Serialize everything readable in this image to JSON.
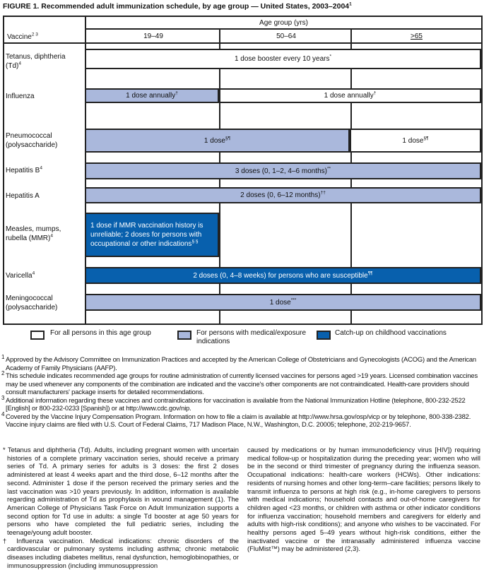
{
  "title": {
    "text": "FIGURE 1. Recommended adult immunization schedule, by age group — United States, 2003–2004",
    "sup": "1"
  },
  "header": {
    "vaccine": "Vaccine",
    "vaccine_sup": "2 3",
    "age_group": "Age group (yrs)",
    "ages": [
      "19–49",
      "50–64",
      ">65"
    ]
  },
  "rows": [
    {
      "vaccine": "Tetanus, diphtheria (Td)",
      "sup": "4",
      "bars": [
        {
          "text": "1 dose booster every 10 years",
          "sup": "*",
          "type": "all"
        }
      ]
    },
    {
      "vaccine": "Influenza",
      "sup": "",
      "bars": [
        {
          "text": "1 dose annually",
          "sup": "†",
          "type": "medical"
        },
        {
          "text": "1 dose annually",
          "sup": "†",
          "type": "all"
        }
      ]
    },
    {
      "vaccine": "Pneumococcal (polysaccharide)",
      "sup": "",
      "bars": [
        {
          "text": "1 dose",
          "sup": "§¶",
          "type": "medical"
        },
        {
          "text": "1 dose",
          "sup": "§¶",
          "type": "all"
        }
      ]
    },
    {
      "vaccine": "Hepatitis B",
      "sup": "4",
      "bars": [
        {
          "text": "3 doses (0, 1–2, 4–6 months)",
          "sup": "**",
          "type": "medical"
        }
      ]
    },
    {
      "vaccine": "Hepatitis A",
      "sup": "",
      "bars": [
        {
          "text": "2 doses (0, 6–12 months)",
          "sup": "††",
          "type": "medical"
        }
      ]
    },
    {
      "vaccine": "Measles, mumps, rubella (MMR)",
      "sup": "4",
      "bars": [
        {
          "text": "1 dose if MMR vaccination history is unreliable; 2 doses for persons with occupational or other indications",
          "sup": "§ §",
          "type": "catchup"
        }
      ]
    },
    {
      "vaccine": "Varicella",
      "sup": "4",
      "bars": [
        {
          "text": "2 doses (0, 4–8 weeks) for persons who are susceptible",
          "sup": "¶¶",
          "type": "catchup"
        }
      ]
    },
    {
      "vaccine": "Meningococcal (polysaccharide)",
      "sup": "",
      "bars": [
        {
          "text": "1 dose",
          "sup": "***",
          "type": "medical"
        }
      ]
    }
  ],
  "legend": [
    {
      "label": "For all persons in this age group",
      "color": "#ffffff"
    },
    {
      "label": "For persons with medical/exposure indications",
      "color": "#aab8dc"
    },
    {
      "label": "Catch-up on childhood vaccinations",
      "color": "#0860ad"
    }
  ],
  "footnotes": [
    {
      "n": "1",
      "text": "Approved by the Advisory Committee on Immunization Practices and accepted by the American College of Obstetricians and Gynecologists (ACOG) and the American Academy of Family Physicians (AAFP)."
    },
    {
      "n": "2",
      "text": "This schedule indicates recommended age groups for routine administration of currently licensed vaccines for persons aged >19 years. Licensed combination vaccines may be used whenever any components of the combination are indicated and the vaccine's other components are not contraindicated. Health-care providers should consult manufacturers' package inserts for detailed recommendations."
    },
    {
      "n": "3",
      "text": "Additional information regarding these vaccines and contraindications for vaccination is available from the National Immunization Hotline (telephone, 800-232-2522 [English] or 800-232-0233 [Spanish]) or at http://www.cdc.gov/nip."
    },
    {
      "n": "4",
      "text": "Covered by the Vaccine Injury Compensation Program. Information on how to file a claim is available at http://www.hrsa.gov/osp/vicp or by telephone, 800-338-2382. Vaccine injury claims are filed with U.S. Court of Federal Claims, 717 Madison Place, N.W., Washington, D.C. 20005; telephone, 202-219-9657."
    }
  ],
  "notes": {
    "td": "* Tetanus and diphtheria (Td). Adults, including pregnant women with uncertain histories of a complete primary vaccination series, should receive a primary series of Td. A primary series for adults is 3 doses: the first 2 doses administered at least 4 weeks apart and the third dose, 6–12 months after the second. Administer 1 dose if the person received the primary series and the last vaccination was >10 years previously. In addition, information is available regarding administration of Td as prophylaxis in wound management (1). The American College of Physicians Task Force on Adult Immunization supports a second option for Td use in adults: a single Td booster at age 50 years for persons who have completed the full pediatric series, including the teenage/young adult booster.",
    "influenza_left": "† Influenza vaccination. Medical indications: chronic disorders of the cardiovascular or pulmonary systems including asthma; chronic metabolic diseases including diabetes mellitus, renal dysfunction, hemoglobinopathies, or immunosuppression (including immunosuppression",
    "influenza_right": "caused by medications or by human immunodeficiency virus [HIV]) requiring medical follow-up or hospitalization during the preceding year; women who will be in the second or third trimester of pregnancy during the influenza season. Occupational indications: health-care workers (HCWs). Other indications: residents of nursing homes and other long-term–care facilities; persons likely to transmit influenza to persons at high risk (e.g., in-home caregivers to persons with medical indications; household contacts and out-of-home caregivers for children aged <23 months, or children with asthma or other indicator conditions for influenza vaccination; household members and caregivers for elderly and adults with high-risk conditions); and anyone who wishes to be vaccinated. For healthy persons aged 5–49 years without high-risk conditions, either the inactivated vaccine or the intranasally administered influenza vaccine (FluMist™) may be administered (2,3)."
  }
}
